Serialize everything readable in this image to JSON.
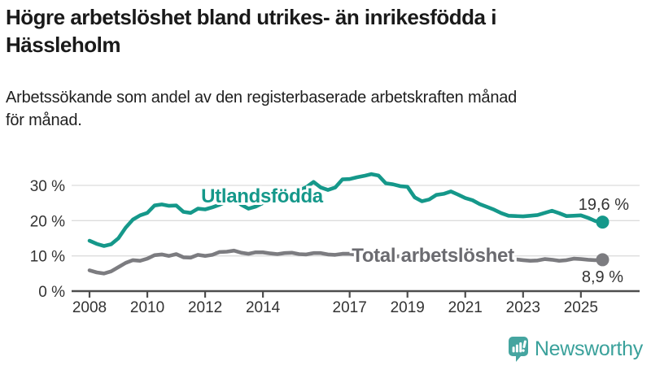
{
  "header": {
    "title_lines": [
      "Högre arbetslöshet bland utrikes- än inrikesfödda i",
      "Hässleholm"
    ],
    "subtitle_lines": [
      "Arbetssökande som andel av den registerbaserade arbetskraften månad",
      "för månad."
    ]
  },
  "chart_data": {
    "type": "line",
    "title": "Högre arbetslöshet bland utrikes- än inrikesfödda i Hässleholm",
    "subtitle": "Arbetssökande som andel av den registerbaserade arbetskraften månad för månad.",
    "x_start": 2008.0,
    "x_step": 0.25,
    "x_end": 2025.75,
    "x_tick_years": [
      2008,
      2010,
      2012,
      2014,
      2017,
      2019,
      2021,
      2023,
      2025
    ],
    "x_tick_labels": [
      "2008",
      "2010",
      "2012",
      "2014",
      "2017",
      "2019",
      "2021",
      "2023",
      "2025"
    ],
    "y_ticks": [
      0,
      10,
      20,
      30
    ],
    "y_tick_labels": [
      "0 %",
      "10 %",
      "20 %",
      "30 %"
    ],
    "ylim": [
      0,
      37
    ],
    "grid": "horizontal",
    "legend_position": "inline-labels",
    "colors": {
      "grid": "#dcdcdc",
      "axis": "#4d4d4d",
      "tick_text": "#333333",
      "value_text": "#333333"
    },
    "series": [
      {
        "name": "Utlandsfödda",
        "color": "#15988a",
        "label_color": "#15988a",
        "end_label": "19,6 %",
        "end_value": 19.6,
        "values": [
          14.3,
          13.4,
          12.8,
          13.3,
          15.0,
          18.0,
          20.3,
          21.5,
          22.2,
          24.3,
          24.6,
          24.2,
          24.3,
          22.5,
          22.2,
          23.4,
          23.2,
          23.8,
          24.5,
          25.5,
          26.3,
          24.5,
          23.4,
          24.0,
          25.0,
          25.8,
          26.3,
          27.0,
          27.8,
          28.6,
          29.5,
          31.0,
          29.4,
          28.7,
          29.4,
          31.7,
          31.8,
          32.3,
          32.7,
          33.2,
          32.8,
          30.6,
          30.3,
          29.8,
          29.6,
          26.6,
          25.5,
          26.0,
          27.3,
          27.6,
          28.3,
          27.4,
          26.4,
          25.8,
          24.7,
          23.9,
          23.1,
          22.1,
          21.4,
          21.3,
          21.2,
          21.4,
          21.6,
          22.2,
          22.8,
          22.1,
          21.3,
          21.4,
          21.5,
          20.8,
          19.9,
          19.6
        ]
      },
      {
        "name": "Total arbetslöshet",
        "color": "#7c7c80",
        "label_color": "#6b6b70",
        "end_label": "8,9 %",
        "end_value": 8.9,
        "values": [
          5.9,
          5.3,
          5.0,
          5.6,
          6.8,
          8.0,
          8.8,
          8.6,
          9.2,
          10.2,
          10.4,
          10.0,
          10.5,
          9.6,
          9.5,
          10.3,
          10.0,
          10.3,
          11.1,
          11.2,
          11.5,
          10.9,
          10.6,
          11.0,
          11.0,
          10.7,
          10.5,
          10.8,
          10.9,
          10.5,
          10.4,
          10.8,
          10.8,
          10.4,
          10.3,
          10.6,
          10.6,
          10.3,
          10.2,
          10.4,
          10.2,
          9.9,
          9.8,
          9.9,
          9.7,
          9.2,
          9.0,
          9.2,
          9.8,
          10.3,
          10.5,
          10.2,
          9.9,
          9.5,
          9.2,
          9.0,
          8.9,
          8.7,
          8.8,
          9.0,
          8.8,
          8.6,
          8.7,
          9.1,
          8.9,
          8.6,
          8.8,
          9.2,
          9.1,
          8.9,
          8.8,
          8.9
        ]
      }
    ]
  },
  "footer": {
    "brand": "Newsworthy"
  }
}
